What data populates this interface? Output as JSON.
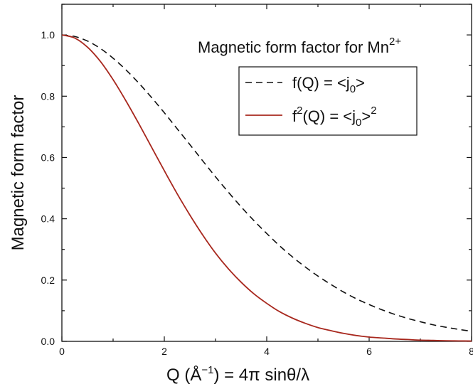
{
  "chart_data": {
    "type": "line",
    "title": "Magnetic form factor for Mn",
    "title_sup": "2+",
    "xlabel": {
      "pre": "Q (Å",
      "sup": "−1",
      "post": ") = 4π  sinθ/λ"
    },
    "ylabel": "Magnetic form factor",
    "xlim": [
      0,
      8
    ],
    "ylim": [
      0,
      1.1
    ],
    "x_ticks": [
      0,
      2,
      4,
      6,
      8
    ],
    "x_tick_labels": [
      "0",
      "2",
      "4",
      "6",
      "8"
    ],
    "y_ticks": [
      0.0,
      0.2,
      0.4,
      0.6,
      0.8,
      1.0
    ],
    "y_tick_labels": [
      "0.0",
      "0.2",
      "0.4",
      "0.6",
      "0.8",
      "1.0"
    ],
    "legend_position": "top-right",
    "series": [
      {
        "name": "f(Q) = <j0>",
        "legend": {
          "main": "f(Q) = <j",
          "sub": "0",
          "post": ">"
        },
        "style": "dashed",
        "color": "#111111",
        "x": [
          0,
          0.25,
          0.5,
          0.75,
          1,
          1.25,
          1.5,
          1.75,
          2,
          2.25,
          2.5,
          2.75,
          3,
          3.25,
          3.5,
          3.75,
          4,
          4.25,
          4.5,
          4.75,
          5,
          5.25,
          5.5,
          5.75,
          6,
          6.25,
          6.5,
          6.75,
          7,
          7.25,
          7.5,
          7.75,
          8
        ],
        "y": [
          1.0,
          0.995,
          0.98,
          0.956,
          0.924,
          0.886,
          0.843,
          0.796,
          0.746,
          0.694,
          0.642,
          0.589,
          0.537,
          0.487,
          0.439,
          0.394,
          0.352,
          0.312,
          0.276,
          0.243,
          0.213,
          0.186,
          0.161,
          0.139,
          0.12,
          0.103,
          0.088,
          0.075,
          0.064,
          0.054,
          0.046,
          0.039,
          0.033
        ]
      },
      {
        "name": "f2(Q) = <j0>2",
        "legend": {
          "main": "f",
          "sup1": "2",
          "mid": "(Q) = <j",
          "sub": "0",
          "post": ">",
          "sup2": "2"
        },
        "style": "solid",
        "color": "#a8281e",
        "x": [
          0,
          0.25,
          0.5,
          0.75,
          1,
          1.25,
          1.5,
          1.75,
          2,
          2.25,
          2.5,
          2.75,
          3,
          3.25,
          3.5,
          3.75,
          4,
          4.25,
          4.5,
          4.75,
          5,
          5.25,
          5.5,
          5.75,
          6,
          6.25,
          6.5,
          6.75,
          7,
          7.25,
          7.5,
          7.75,
          8
        ],
        "y": [
          1.0,
          0.99,
          0.96,
          0.914,
          0.854,
          0.785,
          0.711,
          0.634,
          0.557,
          0.482,
          0.412,
          0.347,
          0.288,
          0.237,
          0.193,
          0.155,
          0.124,
          0.097,
          0.076,
          0.059,
          0.045,
          0.035,
          0.026,
          0.019,
          0.014,
          0.011,
          0.008,
          0.006,
          0.004,
          0.003,
          0.002,
          0.0015,
          0.001
        ]
      }
    ]
  }
}
